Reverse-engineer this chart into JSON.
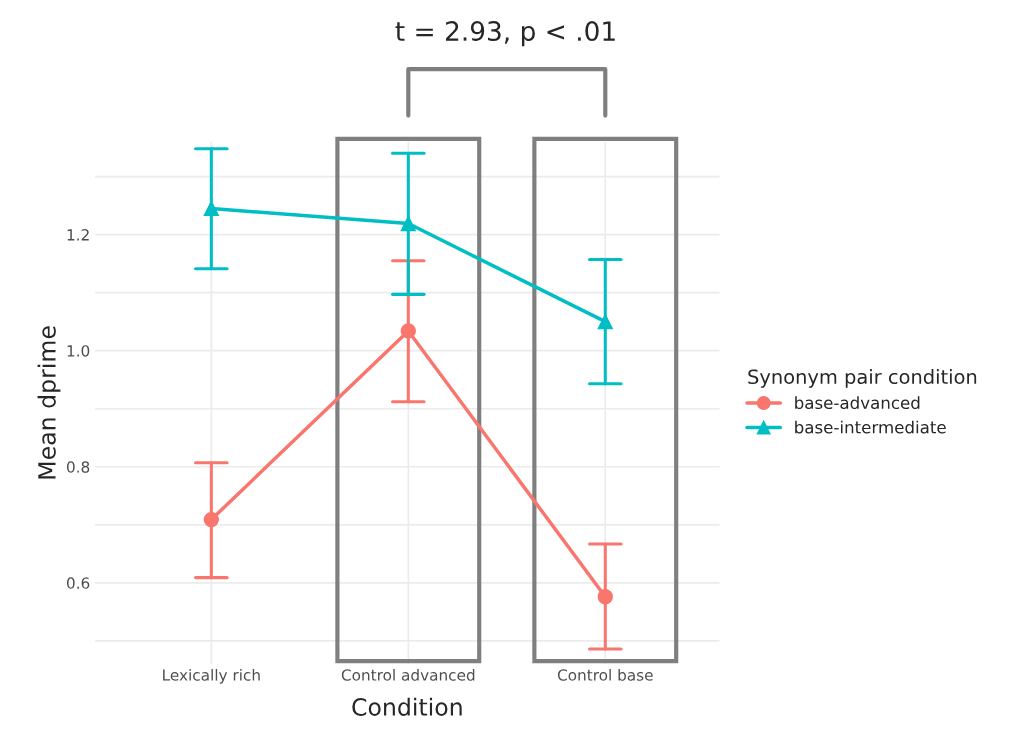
{
  "chart_data": {
    "type": "line",
    "title": "t = 2.93, p < .01",
    "xlabel": "Condition",
    "ylabel": "Mean dprime",
    "legend_title": "Synonym pair condition",
    "categories": [
      "Lexically rich",
      "Control advanced",
      "Control base"
    ],
    "series": [
      {
        "name": "base-advanced",
        "color": "#f8766d",
        "marker": "circle",
        "values": [
          0.709,
          1.034,
          0.576
        ],
        "errors": [
          [
            0.609,
            0.807
          ],
          [
            0.912,
            1.155
          ],
          [
            0.486,
            0.667
          ]
        ]
      },
      {
        "name": "base-intermediate",
        "color": "#00bfc4",
        "marker": "triangle",
        "values": [
          1.245,
          1.219,
          1.05
        ],
        "errors": [
          [
            1.141,
            1.348
          ],
          [
            1.097,
            1.34
          ],
          [
            0.943,
            1.157
          ]
        ]
      }
    ],
    "ylim": [
      0.46,
      1.36
    ],
    "yticks": [
      {
        "value": 0.5,
        "label": null
      },
      0.6,
      {
        "value": 0.7,
        "label": null
      },
      0.8,
      {
        "value": 0.9,
        "label": null
      },
      {
        "value": 1.0,
        "label": "1.0"
      },
      {
        "value": 1.1,
        "label": null
      },
      1.2,
      {
        "value": 1.3,
        "label": null
      }
    ],
    "grid": true,
    "legend": "right",
    "line_style": "solid"
  }
}
